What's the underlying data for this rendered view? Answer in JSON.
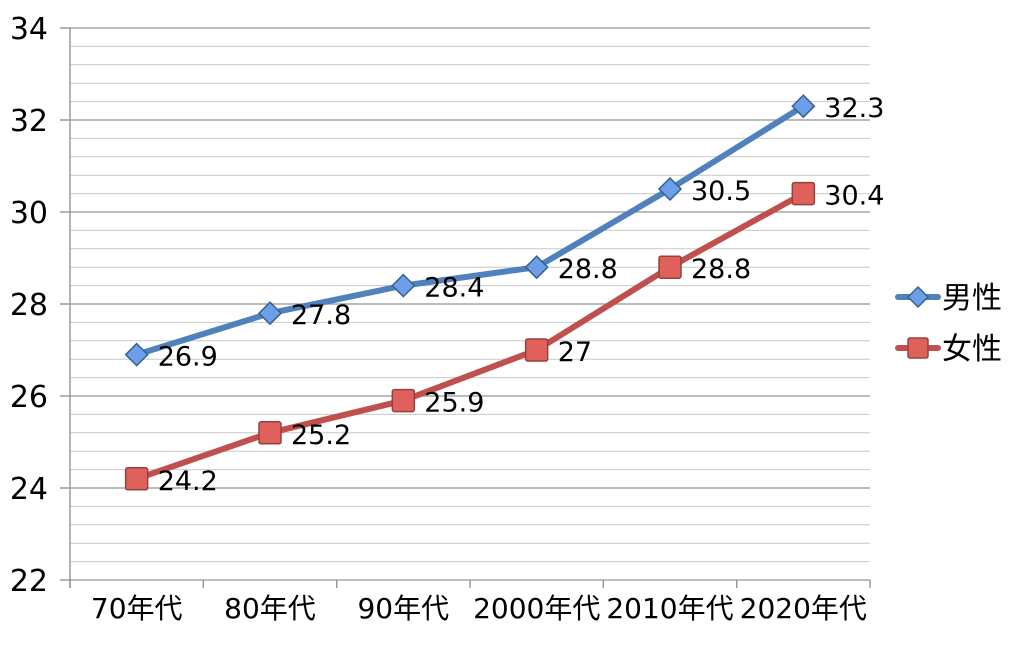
{
  "chart_data": {
    "type": "line",
    "categories": [
      "70年代",
      "80年代",
      "90年代",
      "2000年代",
      "2010年代",
      "2020年代"
    ],
    "series": [
      {
        "key": "male",
        "name": "男性",
        "marker": "diamond",
        "line_color": "#4F81BD",
        "marker_fill": "#6D9EEA",
        "marker_stroke": "#35618F",
        "values": [
          26.9,
          27.8,
          28.4,
          28.8,
          30.5,
          32.3
        ],
        "labels": [
          "26.9",
          "27.8",
          "28.4",
          "28.8",
          "30.5",
          "32.3"
        ]
      },
      {
        "key": "female",
        "name": "女性",
        "marker": "square",
        "line_color": "#C0504D",
        "marker_fill": "#E0615C",
        "marker_stroke": "#97403D",
        "values": [
          24.2,
          25.2,
          25.9,
          27,
          28.8,
          30.4
        ],
        "labels": [
          "24.2",
          "25.2",
          "25.9",
          "27",
          "28.8",
          "30.4"
        ]
      }
    ],
    "ylim": [
      22,
      34
    ],
    "ytick_step": 2,
    "yminor_step": 0.4,
    "yticks": [
      "22",
      "24",
      "26",
      "28",
      "30",
      "32",
      "34"
    ],
    "xlabel": "",
    "ylabel": "",
    "title": "",
    "grid": {
      "major_color": "#949494",
      "minor_color": "#C9C9C9",
      "minor_on": true
    },
    "axis_color": "#8C8C8C",
    "text_color": "#000000",
    "legend_position": "right"
  }
}
